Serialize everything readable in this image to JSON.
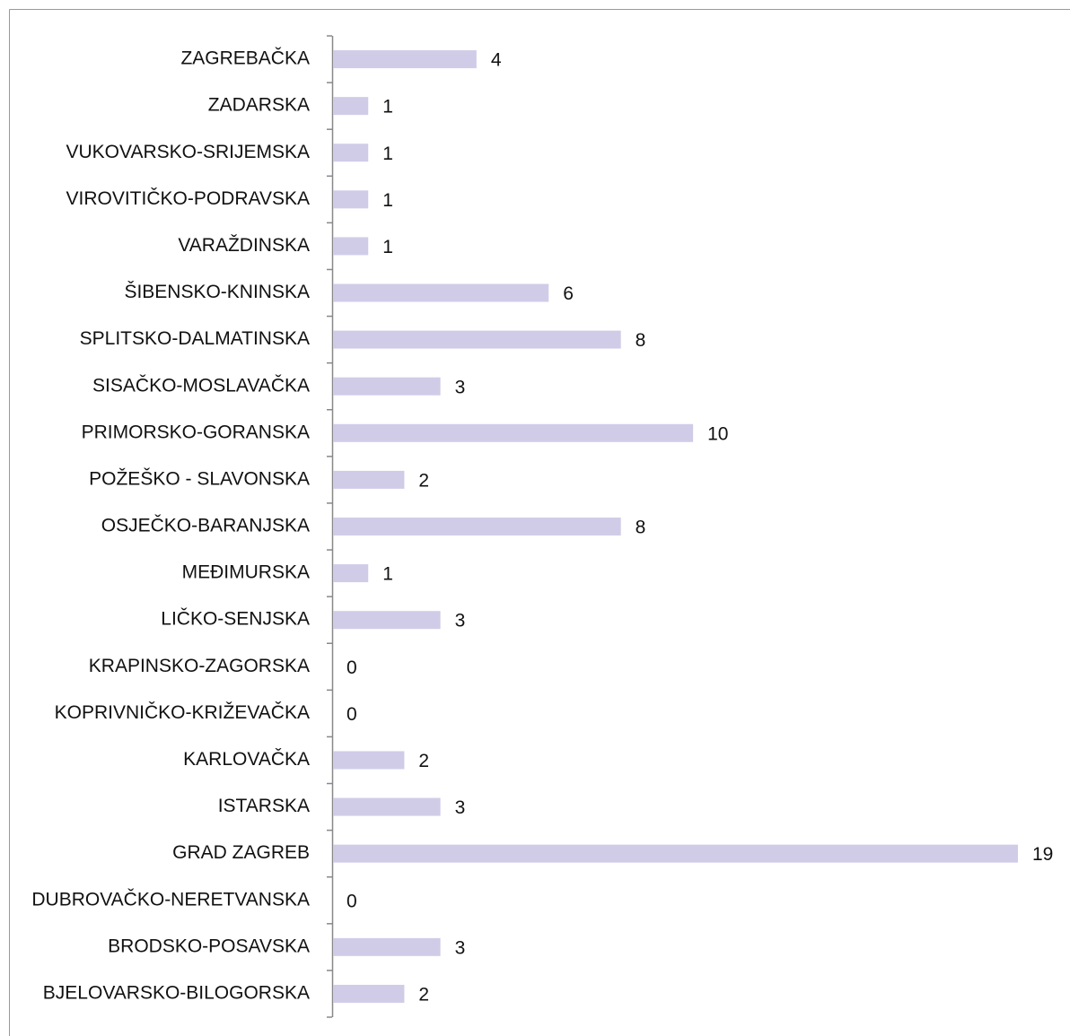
{
  "chart_data": {
    "type": "bar",
    "orientation": "horizontal",
    "color": "#d0cce8",
    "categories": [
      "ZAGREBAČKA",
      "ZADARSKA",
      "VUKOVARSKO-SRIJEMSKA",
      "VIROVITIČKO-PODRAVSKA",
      "VARAŽDINSKA",
      "ŠIBENSKO-KNINSKA",
      "SPLITSKO-DALMATINSKA",
      "SISAČKO-MOSLAVAČKA",
      "PRIMORSKO-GORANSKA",
      "POŽEŠKO - SLAVONSKA",
      "OSJEČKO-BARANJSKA",
      "MEĐIMURSKA",
      "LIČKO-SENJSKA",
      "KRAPINSKO-ZAGORSKA",
      "KOPRIVNIČKO-KRIŽEVAČKA",
      "KARLOVAČKA",
      "ISTARSKA",
      "GRAD ZAGREB",
      "DUBROVAČKO-NERETVANSKA",
      "BRODSKO-POSAVSKA",
      "BJELOVARSKO-BILOGORSKA"
    ],
    "values": [
      4,
      1,
      1,
      1,
      1,
      6,
      8,
      3,
      10,
      2,
      8,
      1,
      3,
      0,
      0,
      2,
      3,
      19,
      0,
      3,
      2
    ]
  }
}
